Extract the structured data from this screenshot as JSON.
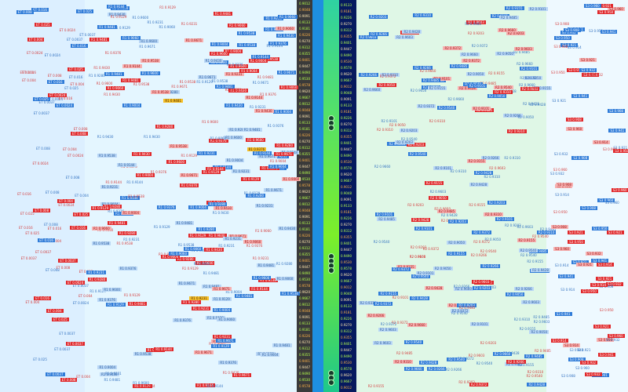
{
  "tick_labels": {
    "left": [
      "ET 0.008",
      "ET 0.004",
      "ET 0.016",
      "ET 0.0037",
      "ET 0.0024",
      "ET 0.025"
    ],
    "left2": [
      "R1 0.9004",
      "R1 0.9060",
      "R1 0.9129",
      "R1 0.9144",
      "R1 0.9231",
      "R1 0.9280",
      "R1 0.9376",
      "R1 0.9430",
      "R1 0.9481",
      "R1 0.9538",
      "R1 0.9600",
      "R1 0.9671"
    ],
    "mid": [
      "0.9012",
      "0.9048",
      "0.9091",
      "0.9133",
      "0.9181",
      "0.9226",
      "0.9270",
      "0.9312",
      "0.9355",
      "0.9401",
      "0.9447",
      "0.9490",
      "0.9530",
      "0.9578",
      "0.9620",
      "0.9667"
    ],
    "right": [
      "R2 0.9050",
      "R2 0.9101",
      "R2 0.9155",
      "R2 0.9203",
      "R2 0.9266",
      "R2 0.9310",
      "R2 0.9372",
      "R2 0.9428",
      "R2 0.9485",
      "R2 0.9540",
      "R2 0.9603",
      "R2 0.9660"
    ],
    "far": [
      "S3 0.908",
      "S3 0.914",
      "S3 0.921",
      "S3 0.932",
      "S3 0.941",
      "S3 0.950",
      "S3 0.960"
    ]
  },
  "colors": {
    "red": "#e0282b",
    "blue": "#2e7bd8",
    "dark": "#3a3a3a",
    "navy": "#061a5e"
  }
}
